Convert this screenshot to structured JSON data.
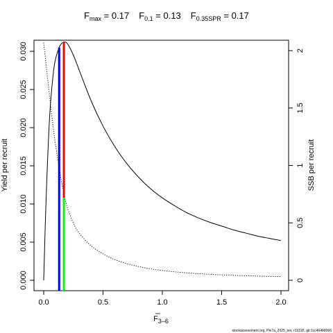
{
  "title": {
    "fmax": {
      "main": "F",
      "sub": "max",
      "rest": " = 0.17"
    },
    "f01": {
      "main": "F",
      "sub": "0.1",
      "rest": " = 0.13"
    },
    "fspr": {
      "main": "F",
      "sub": "0.35SPR",
      "rest": " = 0.17"
    }
  },
  "footer": "stockassessment.org, Ple7a_2025_rev, r19192, git:1cc464b8066",
  "chart_data": {
    "type": "line",
    "xlabel": {
      "main": "F",
      "sub": "3–6",
      "bar": true
    },
    "ylabel_left": "Yield per recruit",
    "ylabel_right": "SSB per recruit",
    "xlim": [
      0,
      2
    ],
    "ylim_left": [
      0,
      0.031
    ],
    "ylim_right": [
      0,
      2.05
    ],
    "x_ticks": [
      0,
      0.5,
      1,
      1.5,
      2
    ],
    "x_tick_labels": [
      "0.0",
      "0.5",
      "1.0",
      "1.5",
      "2.0"
    ],
    "y_left_ticks": [
      0,
      0.005,
      0.01,
      0.015,
      0.02,
      0.025,
      0.03
    ],
    "y_left_tick_labels": [
      "0.000",
      "0.005",
      "0.010",
      "0.015",
      "0.020",
      "0.025",
      "0.030"
    ],
    "y_right_ticks": [
      0,
      0.5,
      1,
      1.5,
      2
    ],
    "y_right_tick_labels": [
      "0",
      "0.5",
      "1",
      "1.5",
      "2"
    ],
    "grid": false,
    "series": [
      {
        "axis": "left",
        "style": "solid",
        "color": "#000000",
        "points": [
          [
            0,
            0
          ],
          [
            0.02,
            0.0105
          ],
          [
            0.05,
            0.0215
          ],
          [
            0.08,
            0.027
          ],
          [
            0.1,
            0.029
          ],
          [
            0.13,
            0.0305
          ],
          [
            0.15,
            0.031
          ],
          [
            0.17,
            0.0312
          ],
          [
            0.2,
            0.031
          ],
          [
            0.25,
            0.0295
          ],
          [
            0.3,
            0.0275
          ],
          [
            0.4,
            0.0235
          ],
          [
            0.5,
            0.0202
          ],
          [
            0.6,
            0.0175
          ],
          [
            0.7,
            0.0153
          ],
          [
            0.8,
            0.0135
          ],
          [
            0.9,
            0.012
          ],
          [
            1.0,
            0.0108
          ],
          [
            1.1,
            0.0098
          ],
          [
            1.2,
            0.0089
          ],
          [
            1.3,
            0.0082
          ],
          [
            1.4,
            0.0076
          ],
          [
            1.5,
            0.0071
          ],
          [
            1.6,
            0.0066
          ],
          [
            1.7,
            0.0062
          ],
          [
            1.8,
            0.0058
          ],
          [
            1.9,
            0.0055
          ],
          [
            2.0,
            0.0052
          ]
        ]
      },
      {
        "axis": "right",
        "style": "dotted",
        "color": "#000000",
        "points": [
          [
            0,
            2.07
          ],
          [
            0.02,
            1.88
          ],
          [
            0.05,
            1.6
          ],
          [
            0.08,
            1.33
          ],
          [
            0.1,
            1.18
          ],
          [
            0.13,
            0.98
          ],
          [
            0.15,
            0.86
          ],
          [
            0.17,
            0.76
          ],
          [
            0.2,
            0.63
          ],
          [
            0.25,
            0.5
          ],
          [
            0.3,
            0.41
          ],
          [
            0.4,
            0.3
          ],
          [
            0.5,
            0.23
          ],
          [
            0.6,
            0.18
          ],
          [
            0.7,
            0.145
          ],
          [
            0.8,
            0.12
          ],
          [
            0.9,
            0.1
          ],
          [
            1.0,
            0.085
          ],
          [
            1.2,
            0.065
          ],
          [
            1.4,
            0.052
          ],
          [
            1.6,
            0.043
          ],
          [
            1.8,
            0.037
          ],
          [
            2.0,
            0.032
          ]
        ]
      }
    ],
    "reference_lines": [
      {
        "name": "F0.1",
        "x": 0.13,
        "color": "#0000ff",
        "axis": "left",
        "y_top": 0.0305
      },
      {
        "name": "Fmax",
        "x": 0.17,
        "color": "#ff0000",
        "axis": "left",
        "y_top": 0.0312,
        "y_bottom": 0.0108
      },
      {
        "name": "F0.35SPR",
        "x": 0.17,
        "color": "#00ff00",
        "axis": "left",
        "y_top": 0.0108
      }
    ]
  }
}
